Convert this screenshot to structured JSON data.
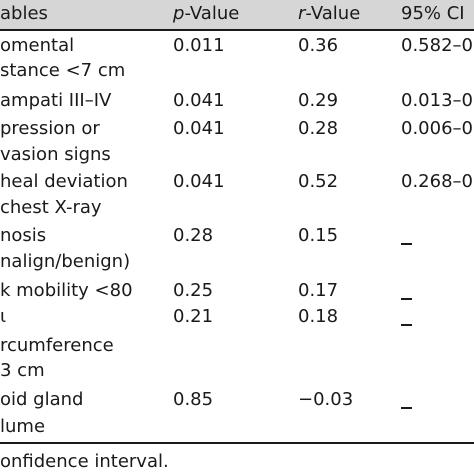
{
  "headers": {
    "variables": "ables",
    "p_italic": "p",
    "p_rest": "-Value",
    "r_italic": "r",
    "r_rest": "-Value",
    "ci": "95% CI"
  },
  "rows": [
    {
      "label1": "omental",
      "label2": "stance <7 cm",
      "p": "0.011",
      "r": "0.36",
      "ci": "0.582–0"
    },
    {
      "label1": "ampati III–IV",
      "p": "0.041",
      "r": "0.29",
      "ci": "0.013–0"
    },
    {
      "label1": "pression or",
      "label2": "vasion signs",
      "p": "0.041",
      "r": "0.28",
      "ci": "0.006–0"
    },
    {
      "label1": "heal deviation",
      "label2": " chest X-ray",
      "p": "0.041",
      "r": "0.52",
      "ci": "0.268–0"
    },
    {
      "label1": "nosis",
      "label2": "nalign/benign)",
      "p": "0.28",
      "r": "0.15"
    },
    {
      "label1": "k mobility <80",
      "p": "0.25",
      "r": "0.17"
    },
    {
      "label1": "ɩ",
      "p": "0.21",
      "r": "0.18"
    },
    {
      "label1": "rcumference",
      "label2": "3 cm"
    },
    {
      "label1": "oid gland",
      "label2": "lume",
      "p": "0.85",
      "r": "−0.03"
    }
  ],
  "footnote": "onfidence interval."
}
